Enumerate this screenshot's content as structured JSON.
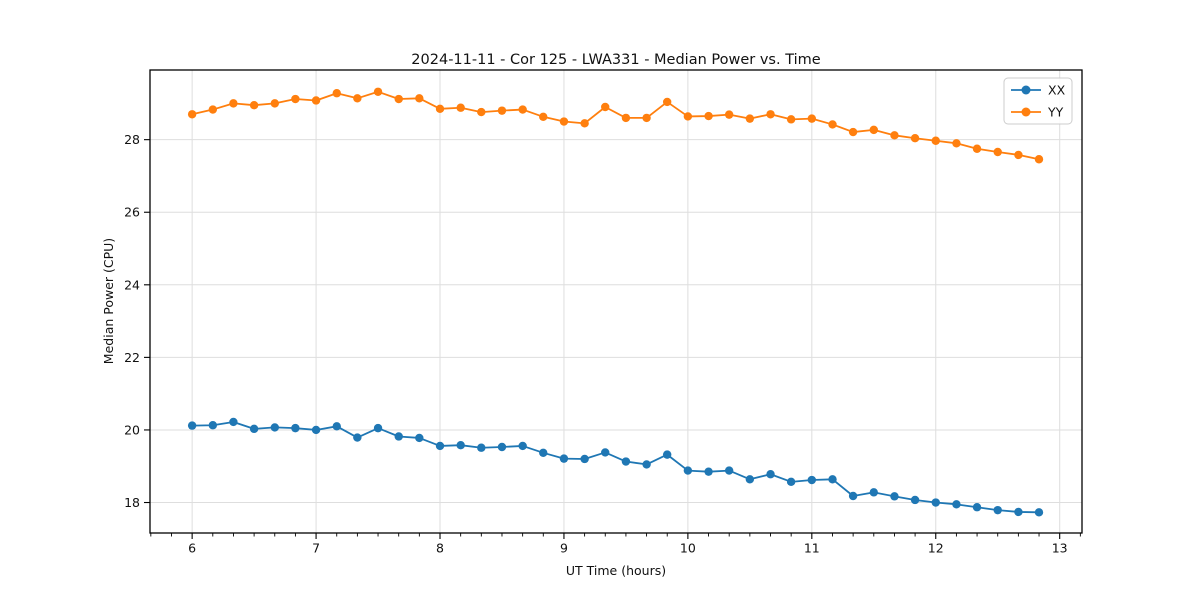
{
  "chart_data": {
    "type": "line",
    "title": "2024-11-11 - Cor 125 - LWA331 - Median Power vs. Time",
    "xlabel": "UT Time (hours)",
    "ylabel": "Median Power (CPU)",
    "xlim": [
      5.66,
      13.18
    ],
    "ylim": [
      17.16,
      29.92
    ],
    "xticks": [
      6,
      7,
      8,
      9,
      10,
      11,
      12,
      13
    ],
    "yticks": [
      18,
      20,
      22,
      24,
      26,
      28
    ],
    "x_minor_step": 0.1666667,
    "grid": true,
    "grid_color": "#dedede",
    "axis_color": "#000000",
    "text_color": "#111111",
    "legend_position": "upper right",
    "marker_size": 4.2,
    "line_width": 1.8,
    "x": [
      6.0,
      6.167,
      6.333,
      6.5,
      6.667,
      6.833,
      7.0,
      7.167,
      7.333,
      7.5,
      7.667,
      7.833,
      8.0,
      8.167,
      8.333,
      8.5,
      8.667,
      8.833,
      9.0,
      9.167,
      9.333,
      9.5,
      9.667,
      9.833,
      10.0,
      10.167,
      10.333,
      10.5,
      10.667,
      10.833,
      11.0,
      11.167,
      11.333,
      11.5,
      11.667,
      11.833,
      12.0,
      12.167,
      12.333,
      12.5,
      12.667,
      12.833
    ],
    "series": [
      {
        "name": "XX",
        "color": "#1f77b4",
        "values": [
          20.12,
          20.13,
          20.22,
          20.03,
          20.07,
          20.05,
          20.0,
          20.1,
          19.79,
          20.05,
          19.82,
          19.78,
          19.56,
          19.58,
          19.51,
          19.53,
          19.56,
          19.37,
          19.21,
          19.2,
          19.38,
          19.13,
          19.05,
          19.32,
          18.88,
          18.85,
          18.88,
          18.64,
          18.78,
          18.57,
          18.62,
          18.64,
          18.18,
          18.28,
          18.17,
          18.07,
          18.0,
          17.95,
          17.87,
          17.79,
          17.74,
          17.73
        ]
      },
      {
        "name": "YY",
        "color": "#ff7f0e",
        "values": [
          28.7,
          28.83,
          29.0,
          28.95,
          29.0,
          29.12,
          29.08,
          29.28,
          29.14,
          29.32,
          29.12,
          29.14,
          28.85,
          28.88,
          28.76,
          28.8,
          28.83,
          28.63,
          28.5,
          28.45,
          28.9,
          28.6,
          28.6,
          29.04,
          28.64,
          28.65,
          28.69,
          28.58,
          28.7,
          28.56,
          28.58,
          28.42,
          28.21,
          28.27,
          28.12,
          28.04,
          27.97,
          27.9,
          27.75,
          27.66,
          27.58,
          27.46
        ]
      }
    ]
  }
}
